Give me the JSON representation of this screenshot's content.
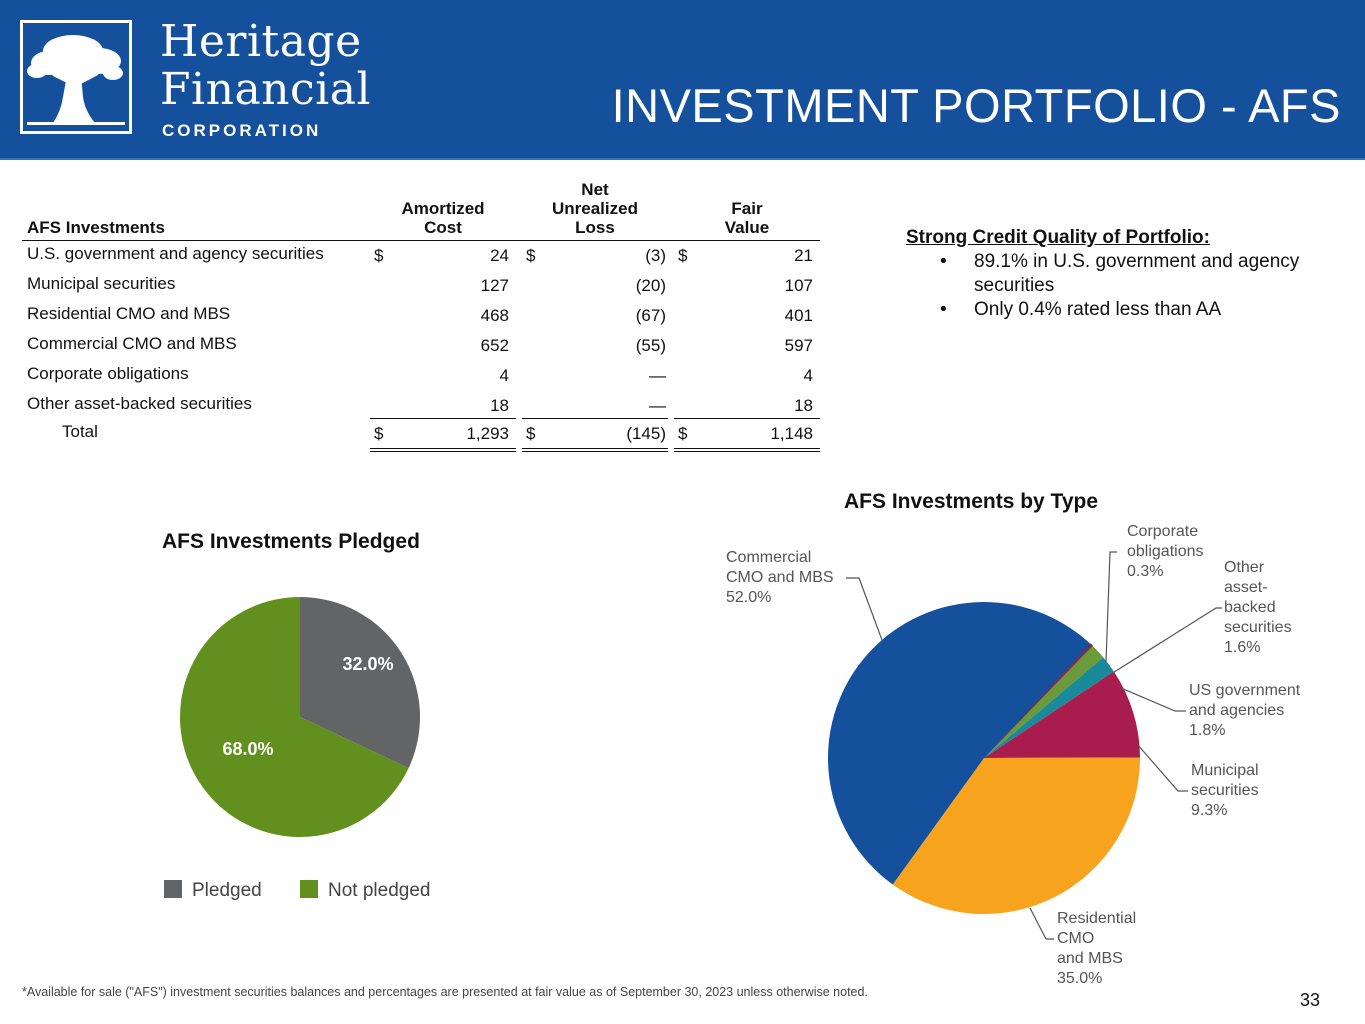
{
  "header": {
    "logo_line1": "Heritage",
    "logo_line2": "Financial",
    "logo_line3": "CORPORATION",
    "title": "INVESTMENT PORTFOLIO - AFS"
  },
  "table": {
    "col0": "AFS Investments",
    "col1": [
      "Amortized",
      "Cost"
    ],
    "col2": [
      "Net",
      "Unrealized",
      "Loss"
    ],
    "col3": [
      "Fair",
      "Value"
    ],
    "rows": [
      {
        "label": "U.S. government and agency securities",
        "cost": "24",
        "loss": "(3)",
        "fair": "21",
        "dollar": true
      },
      {
        "label": "Municipal securities",
        "cost": "127",
        "loss": "(20)",
        "fair": "107",
        "dollar": false
      },
      {
        "label": "Residential CMO and MBS",
        "cost": "468",
        "loss": "(67)",
        "fair": "401",
        "dollar": false
      },
      {
        "label": "Commercial CMO and MBS",
        "cost": "652",
        "loss": "(55)",
        "fair": "597",
        "dollar": false
      },
      {
        "label": "Corporate obligations",
        "cost": "4",
        "loss": "—",
        "fair": "4",
        "dollar": false
      },
      {
        "label": "Other asset-backed securities",
        "cost": "18",
        "loss": "—",
        "fair": "18",
        "dollar": false
      }
    ],
    "total": {
      "label": "Total",
      "cost": "1,293",
      "loss": "(145)",
      "fair": "1,148"
    },
    "currency": "$"
  },
  "credit": {
    "heading": "Strong Credit Quality of Portfolio:",
    "bullet": "•",
    "items": [
      [
        "89.1%  in U.S. government and agency",
        "securities"
      ],
      [
        "Only 0.4% rated less than AA"
      ]
    ]
  },
  "chart_data": [
    {
      "type": "pie",
      "title": "AFS Investments Pledged",
      "slices": [
        {
          "name": "Pledged",
          "value": 32.0,
          "label": "32.0%",
          "color": "#636466"
        },
        {
          "name": "Not pledged",
          "value": 68.0,
          "label": "68.0%",
          "color": "#62901e"
        }
      ],
      "legend": "bottom"
    },
    {
      "type": "pie",
      "title": "AFS Investments by Type",
      "slices": [
        {
          "name": "Corporate obligations",
          "value": 0.3,
          "label_lines": [
            "Corporate",
            "obligations",
            "0.3%"
          ],
          "color": "#7a2a5a"
        },
        {
          "name": "Other asset-backed securities",
          "value": 1.6,
          "label_lines": [
            "Other",
            "asset-",
            "backed",
            "securities",
            "1.6%"
          ],
          "color": "#6a9a3a"
        },
        {
          "name": "US government and agencies",
          "value": 1.8,
          "label_lines": [
            "US government",
            "and agencies",
            "1.8%"
          ],
          "color": "#1a8a9a"
        },
        {
          "name": "Municipal securities",
          "value": 9.3,
          "label_lines": [
            "Municipal",
            "securities",
            "9.3%"
          ],
          "color": "#a91c4e"
        },
        {
          "name": "Residential CMO and MBS",
          "value": 35.0,
          "label_lines": [
            "Residential",
            "CMO",
            "and MBS",
            "35.0%"
          ],
          "color": "#f8a31e"
        },
        {
          "name": "Commercial CMO and MBS",
          "value": 52.0,
          "label_lines": [
            "Commercial",
            "CMO and MBS",
            "52.0%"
          ],
          "color": "#15509c"
        }
      ],
      "legend": "none"
    }
  ],
  "footnote": "*Available for sale (\"AFS\") investment securities balances and percentages are presented at fair value as of September 30, 2023 unless otherwise noted.",
  "page_number": "33"
}
